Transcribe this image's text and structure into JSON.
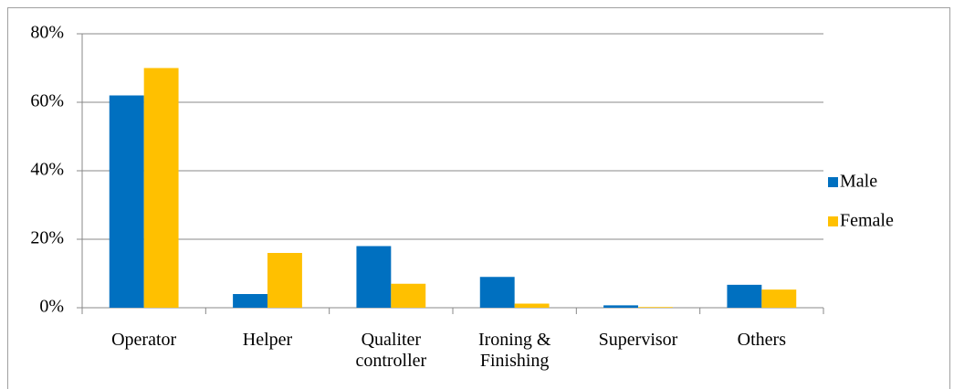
{
  "chart_data": {
    "type": "bar",
    "categories": [
      "Operator",
      "Helper",
      "Qualiter controller",
      "Ironing & Finishing",
      "Supervisor",
      "Others"
    ],
    "series": [
      {
        "name": "Male",
        "color": "#0070c0",
        "values": [
          62,
          4,
          18,
          9,
          0.7,
          6.7
        ]
      },
      {
        "name": "Female",
        "color": "#ffc000",
        "values": [
          70,
          16,
          7,
          1.2,
          0.2,
          5.3
        ]
      }
    ],
    "ylim": [
      0,
      80
    ],
    "yticks": [
      {
        "value": 0,
        "label": "0%"
      },
      {
        "value": 20,
        "label": "20%"
      },
      {
        "value": 40,
        "label": "40%"
      },
      {
        "value": 60,
        "label": "60%"
      },
      {
        "value": 80,
        "label": "80%"
      }
    ],
    "grid": true,
    "legend": "right"
  }
}
